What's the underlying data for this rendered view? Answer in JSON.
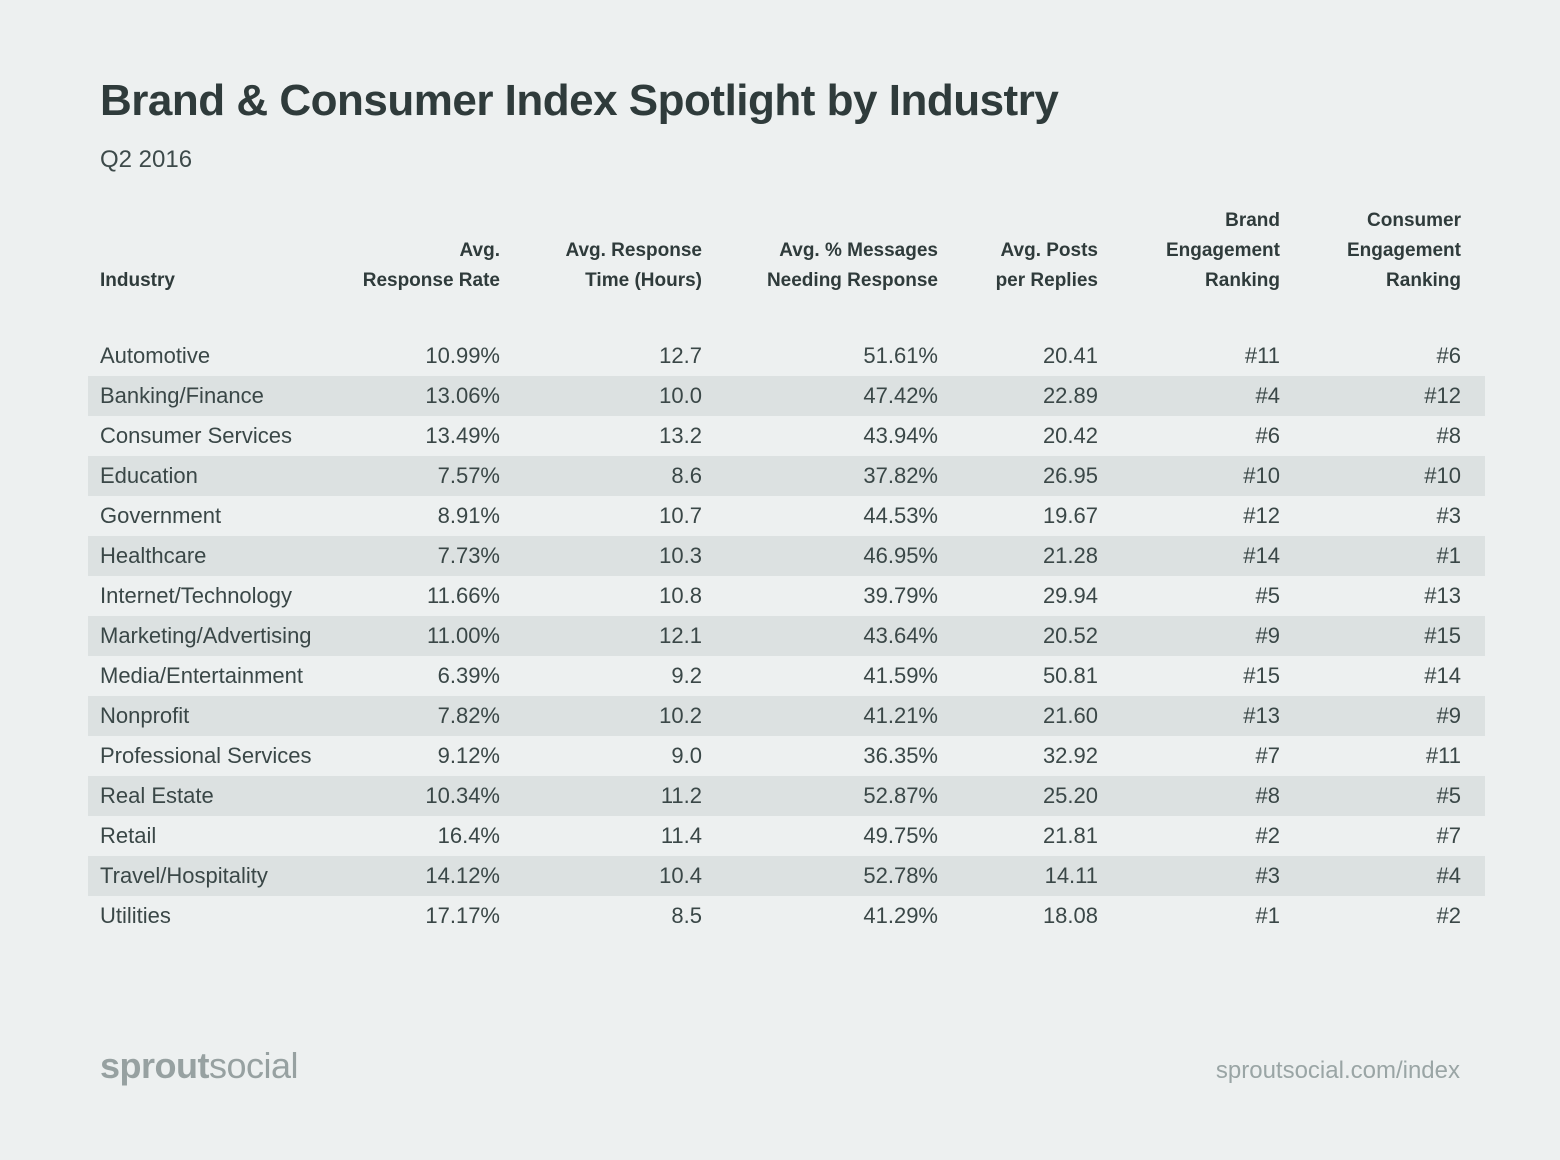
{
  "page": {
    "title": "Brand & Consumer Index Spotlight by Industry",
    "subtitle": "Q2 2016"
  },
  "chart_data": {
    "type": "table",
    "title": "Brand & Consumer Index Spotlight by Industry",
    "subtitle": "Q2 2016",
    "columns": [
      {
        "label": "Industry",
        "header_lines": "Industry",
        "align": "left"
      },
      {
        "label": "Avg. Response Rate",
        "header_lines": "Avg.\nResponse Rate",
        "align": "right"
      },
      {
        "label": "Avg. Response Time (Hours)",
        "header_lines": "Avg. Response\nTime (Hours)",
        "align": "right"
      },
      {
        "label": "Avg. % Messages Needing Response",
        "header_lines": "Avg. % Messages\nNeeding Response",
        "align": "right"
      },
      {
        "label": "Avg. Posts per Replies",
        "header_lines": "Avg. Posts\nper Replies",
        "align": "right"
      },
      {
        "label": "Brand Engagement Ranking",
        "header_lines": "Brand\nEngagement\nRanking",
        "align": "right"
      },
      {
        "label": "Consumer Engagement Ranking",
        "header_lines": "Consumer\nEngagement\nRanking",
        "align": "right"
      }
    ],
    "rows": [
      [
        "Automotive",
        "10.99%",
        "12.7",
        "51.61%",
        "20.41",
        "#11",
        "#6"
      ],
      [
        "Banking/Finance",
        "13.06%",
        "10.0",
        "47.42%",
        "22.89",
        "#4",
        "#12"
      ],
      [
        "Consumer Services",
        "13.49%",
        "13.2",
        "43.94%",
        "20.42",
        "#6",
        "#8"
      ],
      [
        "Education",
        "7.57%",
        "8.6",
        "37.82%",
        "26.95",
        "#10",
        "#10"
      ],
      [
        "Government",
        "8.91%",
        "10.7",
        "44.53%",
        "19.67",
        "#12",
        "#3"
      ],
      [
        "Healthcare",
        "7.73%",
        "10.3",
        "46.95%",
        "21.28",
        "#14",
        "#1"
      ],
      [
        "Internet/Technology",
        "11.66%",
        "10.8",
        "39.79%",
        "29.94",
        "#5",
        "#13"
      ],
      [
        "Marketing/Advertising",
        "11.00%",
        "12.1",
        "43.64%",
        "20.52",
        "#9",
        "#15"
      ],
      [
        "Media/Entertainment",
        "6.39%",
        "9.2",
        "41.59%",
        "50.81",
        "#15",
        "#14"
      ],
      [
        "Nonprofit",
        "7.82%",
        "10.2",
        "41.21%",
        "21.60",
        "#13",
        "#9"
      ],
      [
        "Professional Services",
        "9.12%",
        "9.0",
        "36.35%",
        "32.92",
        "#7",
        "#11"
      ],
      [
        "Real Estate",
        "10.34%",
        "11.2",
        "52.87%",
        "25.20",
        "#8",
        "#5"
      ],
      [
        "Retail",
        "16.4%",
        "11.4",
        "49.75%",
        "21.81",
        "#2",
        "#7"
      ],
      [
        "Travel/Hospitality",
        "14.12%",
        "10.4",
        "52.78%",
        "14.11",
        "#3",
        "#4"
      ],
      [
        "Utilities",
        "17.17%",
        "8.5",
        "41.29%",
        "18.08",
        "#1",
        "#2"
      ]
    ],
    "layout": {
      "striped_rows": "even rows shaded",
      "legend": "none",
      "grid": "off"
    }
  },
  "footer": {
    "logo_bold": "sprout",
    "logo_regular": "social",
    "url": "sproutsocial.com/index"
  },
  "colors": {
    "background": "#EDF0F0",
    "stripe": "#DCE1E1",
    "heading_text": "#2F3B3B",
    "body_text": "#3A4747",
    "footer_text": "#98A3A3"
  }
}
